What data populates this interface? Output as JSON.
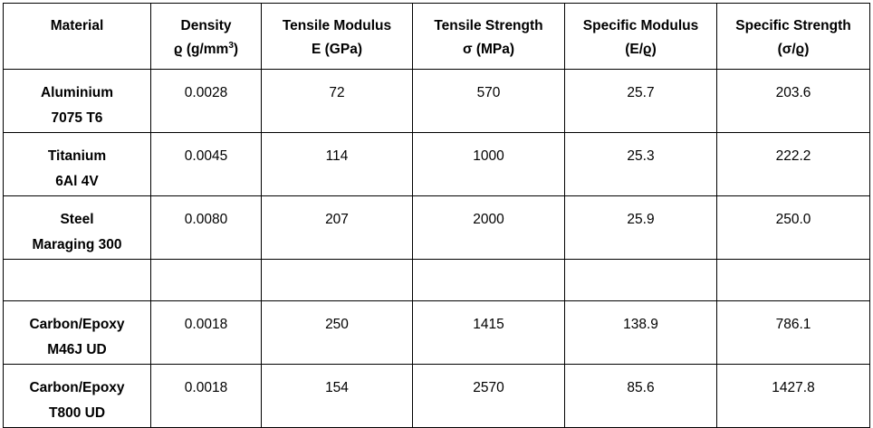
{
  "table": {
    "headers": [
      {
        "line1": "Material",
        "line2": ""
      },
      {
        "line1": "Density",
        "line2": "ϱ (g/mm",
        "sup": "3",
        "line2_end": ")"
      },
      {
        "line1": "Tensile Modulus",
        "line2": "E (GPa)"
      },
      {
        "line1": "Tensile Strength",
        "line2": "σ (MPa)"
      },
      {
        "line1": "Specific Modulus",
        "line2": "(E/ϱ)"
      },
      {
        "line1": "Specific Strength",
        "line2": "(σ/ϱ)"
      }
    ],
    "rows": [
      {
        "material": [
          "Aluminium",
          "7075 T6"
        ],
        "density": "0.0028",
        "modulus": "72",
        "strength": "570",
        "spec_modulus": "25.7",
        "spec_strength": "203.6"
      },
      {
        "material": [
          "Titanium",
          "6Al 4V"
        ],
        "density": "0.0045",
        "modulus": "114",
        "strength": "1000",
        "spec_modulus": "25.3",
        "spec_strength": "222.2"
      },
      {
        "material": [
          "Steel",
          "Maraging 300"
        ],
        "density": "0.0080",
        "modulus": "207",
        "strength": "2000",
        "spec_modulus": "25.9",
        "spec_strength": "250.0"
      },
      {
        "material": [
          "",
          ""
        ],
        "density": "",
        "modulus": "",
        "strength": "",
        "spec_modulus": "",
        "spec_strength": ""
      },
      {
        "material": [
          "Carbon/Epoxy",
          "M46J UD"
        ],
        "density": "0.0018",
        "modulus": "250",
        "strength": "1415",
        "spec_modulus": "138.9",
        "spec_strength": "786.1"
      },
      {
        "material": [
          "Carbon/Epoxy",
          "T800 UD"
        ],
        "density": "0.0018",
        "modulus": "154",
        "strength": "2570",
        "spec_modulus": "85.6",
        "spec_strength": "1427.8"
      }
    ]
  }
}
